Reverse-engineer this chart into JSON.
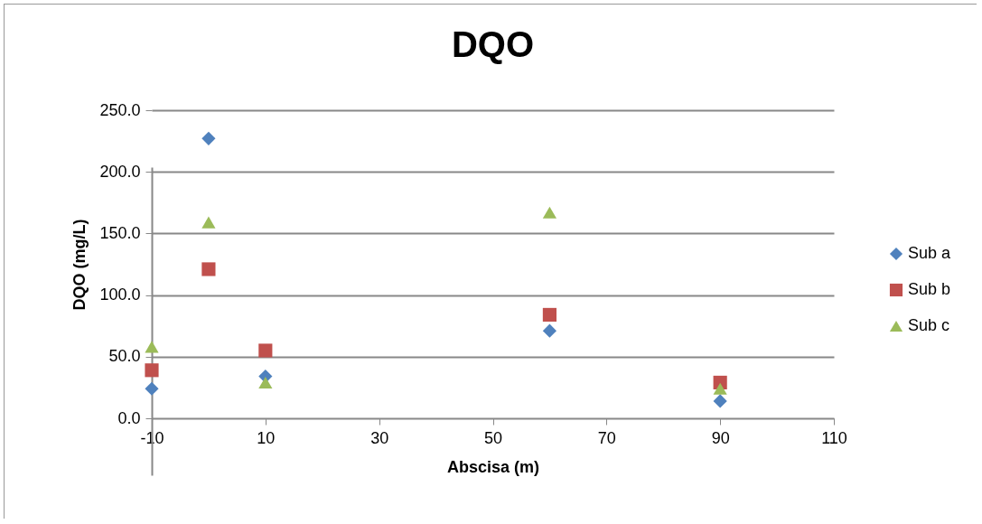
{
  "chart_data": {
    "type": "scatter",
    "title": "DQO",
    "xlabel": "Abscisa (m)",
    "ylabel": "DQO (mg/L)",
    "x": [
      -10,
      0,
      10,
      60,
      90
    ],
    "series": [
      {
        "name": "Sub a",
        "color": "#4f81bd",
        "marker": "diamond",
        "values": [
          24,
          227,
          34,
          71,
          14
        ]
      },
      {
        "name": "Sub b",
        "color": "#c0504d",
        "marker": "square",
        "values": [
          39,
          121,
          55,
          84,
          29
        ]
      },
      {
        "name": "Sub c",
        "color": "#9bbb59",
        "marker": "triangle",
        "values": [
          58,
          159,
          29,
          167,
          24
        ]
      }
    ],
    "xlim": [
      -10,
      110
    ],
    "xticks": [
      -10,
      10,
      30,
      50,
      70,
      90,
      110
    ],
    "ylim": [
      0,
      250
    ],
    "yticks": [
      {
        "value": 0,
        "label": "0.0"
      },
      {
        "value": 50,
        "label": "50.0"
      },
      {
        "value": 100,
        "label": "100.0"
      },
      {
        "value": 150,
        "label": "150.0"
      },
      {
        "value": 200,
        "label": "200.0"
      },
      {
        "value": 250,
        "label": "250.0"
      }
    ],
    "grid": "y",
    "legend": "right"
  }
}
